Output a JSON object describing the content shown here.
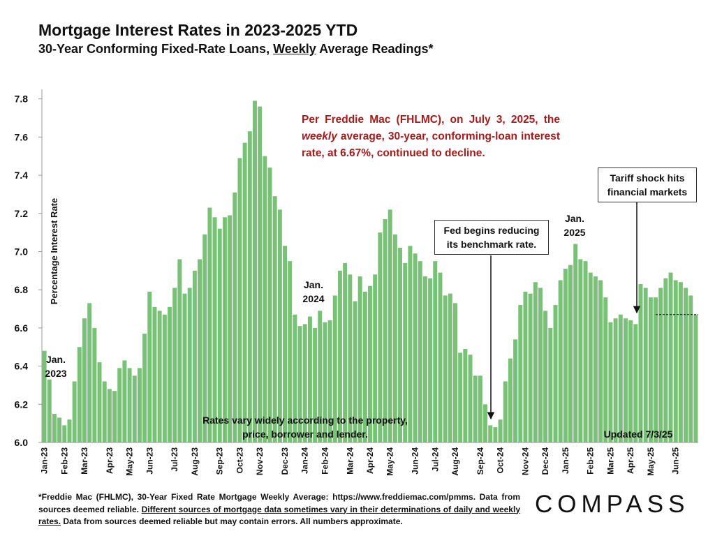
{
  "chart_data": {
    "type": "bar",
    "title": "Mortgage Interest Rates in 2023-2025 YTD",
    "subtitle": [
      {
        "text": "30-Year Conforming Fixed-Rate Loans, "
      },
      {
        "text": "Weekly",
        "underline": true
      },
      {
        "text": " Average Readings*"
      }
    ],
    "y_label": "Percentage Interest  Rate",
    "color": "#79c176",
    "ylim": [
      6.0,
      7.85
    ],
    "yticks": [
      {
        "value": 6.0,
        "label": "6.0"
      },
      {
        "value": 6.2,
        "label": "6.2"
      },
      {
        "value": 6.4,
        "label": "6.4"
      },
      {
        "value": 6.6,
        "label": "6.6"
      },
      {
        "value": 6.8,
        "label": "6.8"
      },
      {
        "value": 7.0,
        "label": "7.0"
      },
      {
        "value": 7.2,
        "label": "7.2"
      },
      {
        "value": 7.4,
        "label": "7.4"
      },
      {
        "value": 7.6,
        "label": "7.6"
      },
      {
        "value": 7.8,
        "label": "7.8"
      }
    ],
    "categories": [
      "Jan-23",
      null,
      null,
      null,
      "Feb-23",
      null,
      null,
      null,
      "Mar-23",
      null,
      null,
      null,
      null,
      "Apr-23",
      null,
      null,
      null,
      "May-23",
      null,
      null,
      null,
      "Jun-23",
      null,
      null,
      null,
      null,
      "Jul-23",
      null,
      null,
      null,
      "Aug-23",
      null,
      null,
      null,
      null,
      "Sep-23",
      null,
      null,
      null,
      "Oct-23",
      null,
      null,
      null,
      "Nov-23",
      null,
      null,
      null,
      null,
      "Dec-23",
      null,
      null,
      null,
      "Jan-24",
      null,
      null,
      null,
      "Feb-24",
      null,
      null,
      null,
      null,
      "Mar-24",
      null,
      null,
      null,
      "Apr-24",
      null,
      null,
      null,
      "May-24",
      null,
      null,
      null,
      null,
      "Jun-24",
      null,
      null,
      null,
      "Jul-24",
      null,
      null,
      null,
      "Aug-24",
      null,
      null,
      null,
      null,
      "Sep-24",
      null,
      null,
      null,
      "Oct-24",
      null,
      null,
      null,
      null,
      "Nov-24",
      null,
      null,
      null,
      "Dec-24",
      null,
      null,
      null,
      "Jan-25",
      null,
      null,
      null,
      null,
      "Feb-25",
      null,
      null,
      null,
      "Mar-25",
      null,
      null,
      null,
      "Apr-25",
      null,
      null,
      null,
      "May-25",
      null,
      null,
      null,
      null,
      "Jun-25",
      null,
      null,
      null,
      null
    ],
    "values": [
      6.48,
      6.33,
      6.15,
      6.13,
      6.09,
      6.12,
      6.32,
      6.5,
      6.65,
      6.73,
      6.6,
      6.42,
      6.32,
      6.28,
      6.27,
      6.39,
      6.43,
      6.39,
      6.35,
      6.39,
      6.57,
      6.79,
      6.71,
      6.69,
      6.67,
      6.71,
      6.81,
      6.96,
      6.78,
      6.81,
      6.9,
      6.96,
      7.09,
      7.23,
      7.18,
      7.12,
      7.18,
      7.19,
      7.31,
      7.49,
      7.57,
      7.63,
      7.79,
      7.76,
      7.5,
      7.44,
      7.29,
      7.22,
      7.03,
      6.95,
      6.67,
      6.61,
      6.62,
      6.66,
      6.6,
      6.69,
      6.63,
      6.64,
      6.77,
      6.9,
      6.94,
      6.88,
      6.74,
      6.87,
      6.79,
      6.82,
      6.88,
      7.1,
      7.17,
      7.22,
      7.09,
      7.02,
      6.94,
      7.03,
      6.99,
      6.95,
      6.87,
      6.86,
      6.95,
      6.89,
      6.77,
      6.78,
      6.73,
      6.47,
      6.49,
      6.46,
      6.35,
      6.35,
      6.2,
      6.09,
      6.08,
      6.12,
      6.32,
      6.44,
      6.54,
      6.72,
      6.79,
      6.78,
      6.84,
      6.81,
      6.69,
      6.6,
      6.72,
      6.85,
      6.91,
      6.93,
      7.04,
      6.96,
      6.95,
      6.89,
      6.87,
      6.85,
      6.76,
      6.63,
      6.65,
      6.67,
      6.65,
      6.64,
      6.62,
      6.83,
      6.81,
      6.76,
      6.76,
      6.81,
      6.86,
      6.89,
      6.85,
      6.84,
      6.81,
      6.77,
      6.67
    ],
    "reference_line": 6.67,
    "note": [
      {
        "text": "Per Freddie Mac (FHLMC), on July 3, 2025, the "
      },
      {
        "text": "weekly",
        "italic": true
      },
      {
        "text": " average, 30-year, conforming-loan interest rate, at 6.67%, continued to decline."
      }
    ],
    "annotations": [
      {
        "lines": [
          "Jan.",
          "2023"
        ]
      },
      {
        "lines": [
          "Jan.",
          "2024"
        ]
      },
      {
        "lines": [
          "Jan.",
          "2025"
        ]
      },
      {
        "lines": [
          "Fed begins reducing",
          "its benchmark rate."
        ]
      },
      {
        "lines": [
          "Tariff shock hits",
          "financial markets"
        ]
      },
      {
        "lines": [
          "Rates vary widely according to the property,",
          "price, borrower and lender."
        ]
      },
      {
        "lines": [
          "Updated 7/3/25"
        ]
      }
    ],
    "footer": [
      {
        "text": "*Freddie Mac (FHLMC), 30-Year Fixed Rate Mortgage Weekly Average:  https://www.freddiemac.com/pmms. Data from sources deemed reliable. "
      },
      {
        "text": "Different sources of mortgage data sometimes vary in their determinations of daily and weekly rates.",
        "underline": true
      },
      {
        "text": " Data from sources deemed reliable but may contain errors. All numbers approximate."
      }
    ]
  },
  "logo": "COMPASS"
}
